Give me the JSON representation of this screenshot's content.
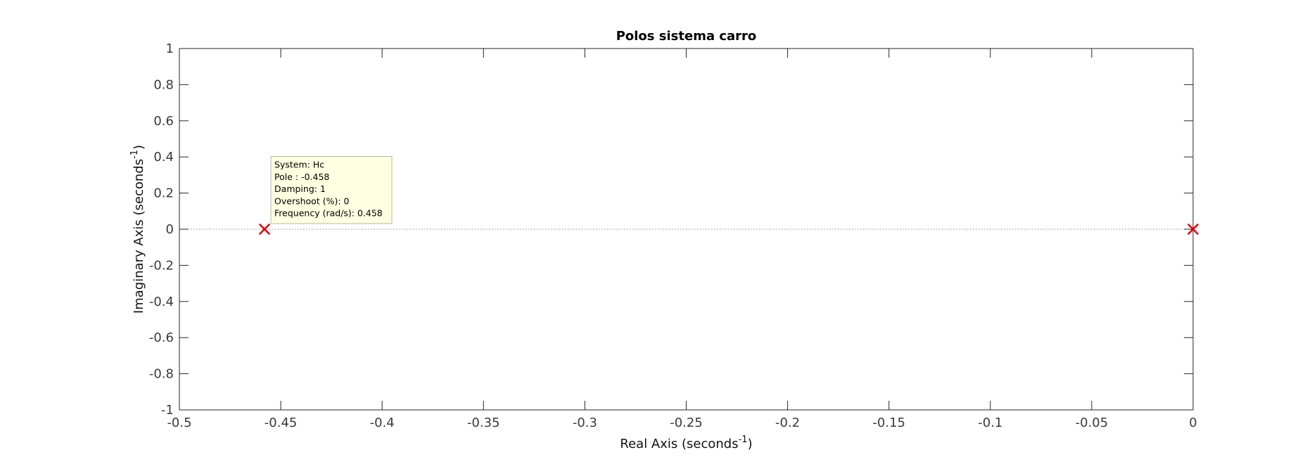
{
  "chart_data": {
    "type": "scatter",
    "title": "Polos sistema carro",
    "xlabel": {
      "text": "Real Axis (seconds",
      "sup": "-1",
      "close": ")"
    },
    "ylabel": {
      "text": "Imaginary Axis (seconds",
      "sup": "-1",
      "close": ")"
    },
    "xlim": [
      -0.5,
      0
    ],
    "ylim": [
      -1,
      1
    ],
    "xticks": [
      -0.5,
      -0.45,
      -0.4,
      -0.35,
      -0.3,
      -0.25,
      -0.2,
      -0.15,
      -0.1,
      -0.05,
      0
    ],
    "xtick_labels": [
      "-0.5",
      "-0.45",
      "-0.4",
      "-0.35",
      "-0.3",
      "-0.25",
      "-0.2",
      "-0.15",
      "-0.1",
      "-0.05",
      "0"
    ],
    "yticks": [
      1,
      0.8,
      0.6,
      0.4,
      0.2,
      0,
      -0.2,
      -0.4,
      -0.6,
      -0.8,
      -1
    ],
    "ytick_labels": [
      "1",
      "0.8",
      "0.6",
      "0.4",
      "0.2",
      "0",
      "-0.2",
      "-0.4",
      "-0.6",
      "-0.8",
      "-1"
    ],
    "grid": false,
    "marker": "x",
    "marker_color": "#e8000b",
    "series": [
      {
        "points": [
          {
            "x": -0.458,
            "y": 0
          },
          {
            "x": 0,
            "y": 0
          }
        ]
      }
    ],
    "datatip": {
      "anchor": {
        "x": -0.458,
        "y": 0
      },
      "lines": [
        "System: Hc",
        "Pole : -0.458",
        "Damping: 1",
        "Overshoot (%): 0",
        "Frequency (rad/s): 0.458"
      ],
      "background": "#ffffe1"
    }
  }
}
